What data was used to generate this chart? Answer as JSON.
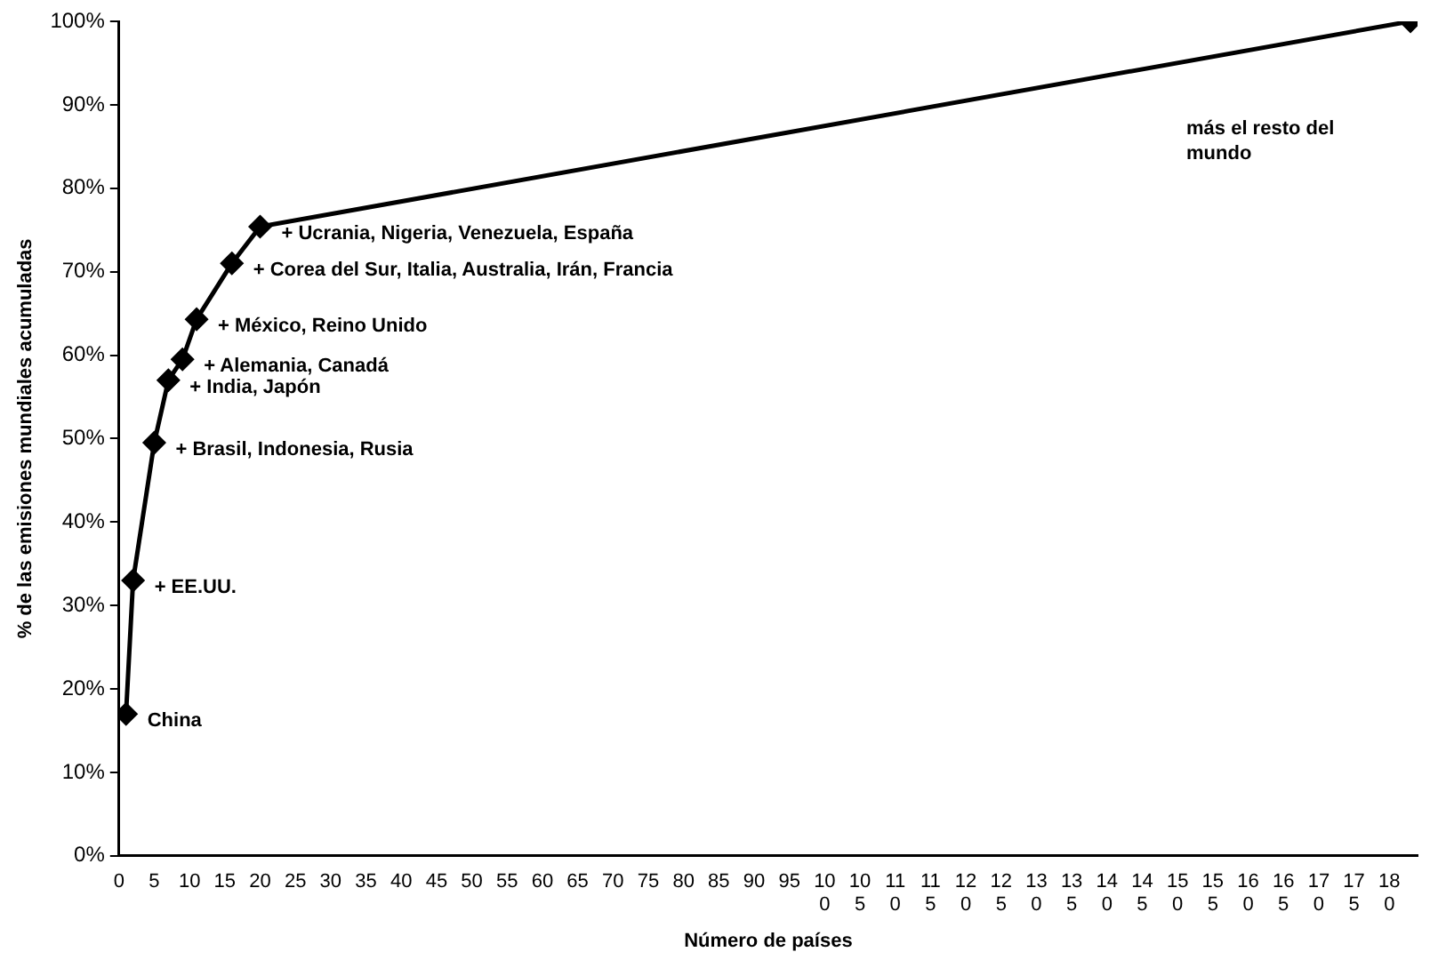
{
  "chart_data": {
    "type": "line",
    "xlabel": "Número de países",
    "ylabel": "% de las emisiones mundiales acumuladas",
    "x": [
      1,
      2,
      5,
      7,
      9,
      11,
      16,
      20,
      183
    ],
    "series": [
      {
        "color": "#000000",
        "values": [
          17,
          33,
          49.5,
          57,
          59.5,
          64.3,
          71,
          75.4,
          100
        ]
      }
    ],
    "xlim": [
      0,
      184
    ],
    "xticks": [
      0,
      5,
      10,
      15,
      20,
      25,
      30,
      35,
      40,
      45,
      50,
      55,
      60,
      65,
      70,
      75,
      80,
      85,
      90,
      95,
      100,
      105,
      110,
      115,
      120,
      125,
      130,
      135,
      140,
      145,
      150,
      155,
      160,
      165,
      170,
      175,
      180
    ],
    "ylim": [
      0,
      100
    ],
    "yticks": [
      {
        "value": 0,
        "label": "0%"
      },
      {
        "value": 10,
        "label": "10%"
      },
      {
        "value": 20,
        "label": "20%"
      },
      {
        "value": 30,
        "label": "30%"
      },
      {
        "value": 40,
        "label": "40%"
      },
      {
        "value": 50,
        "label": "50%"
      },
      {
        "value": 60,
        "label": "60%"
      },
      {
        "value": 70,
        "label": "70%"
      },
      {
        "value": 80,
        "label": "80%"
      },
      {
        "value": 90,
        "label": "90%"
      },
      {
        "value": 100,
        "label": "100%"
      }
    ],
    "grid": false,
    "legend": false,
    "marker": "diamond",
    "line_style": "solid",
    "annotations": [
      {
        "text": "China",
        "x": 1,
        "y": 17
      },
      {
        "text": "+ EE.UU.",
        "x": 2,
        "y": 33
      },
      {
        "text": "+ Brasil, Indonesia, Rusia",
        "x": 5,
        "y": 49.5
      },
      {
        "text": "+ India, Japón",
        "x": 7,
        "y": 57
      },
      {
        "text": "+ Alemania, Canadá",
        "x": 9,
        "y": 59.5
      },
      {
        "text": "+ México, Reino Unido",
        "x": 11,
        "y": 64.3
      },
      {
        "text": "+ Corea del Sur, Italia, Australia, Irán, Francia",
        "x": 16,
        "y": 71
      },
      {
        "text": "+ Ucrania, Nigeria, Venezuela, España",
        "x": 20,
        "y": 75.4
      },
      "más el resto del mundo"
    ]
  }
}
